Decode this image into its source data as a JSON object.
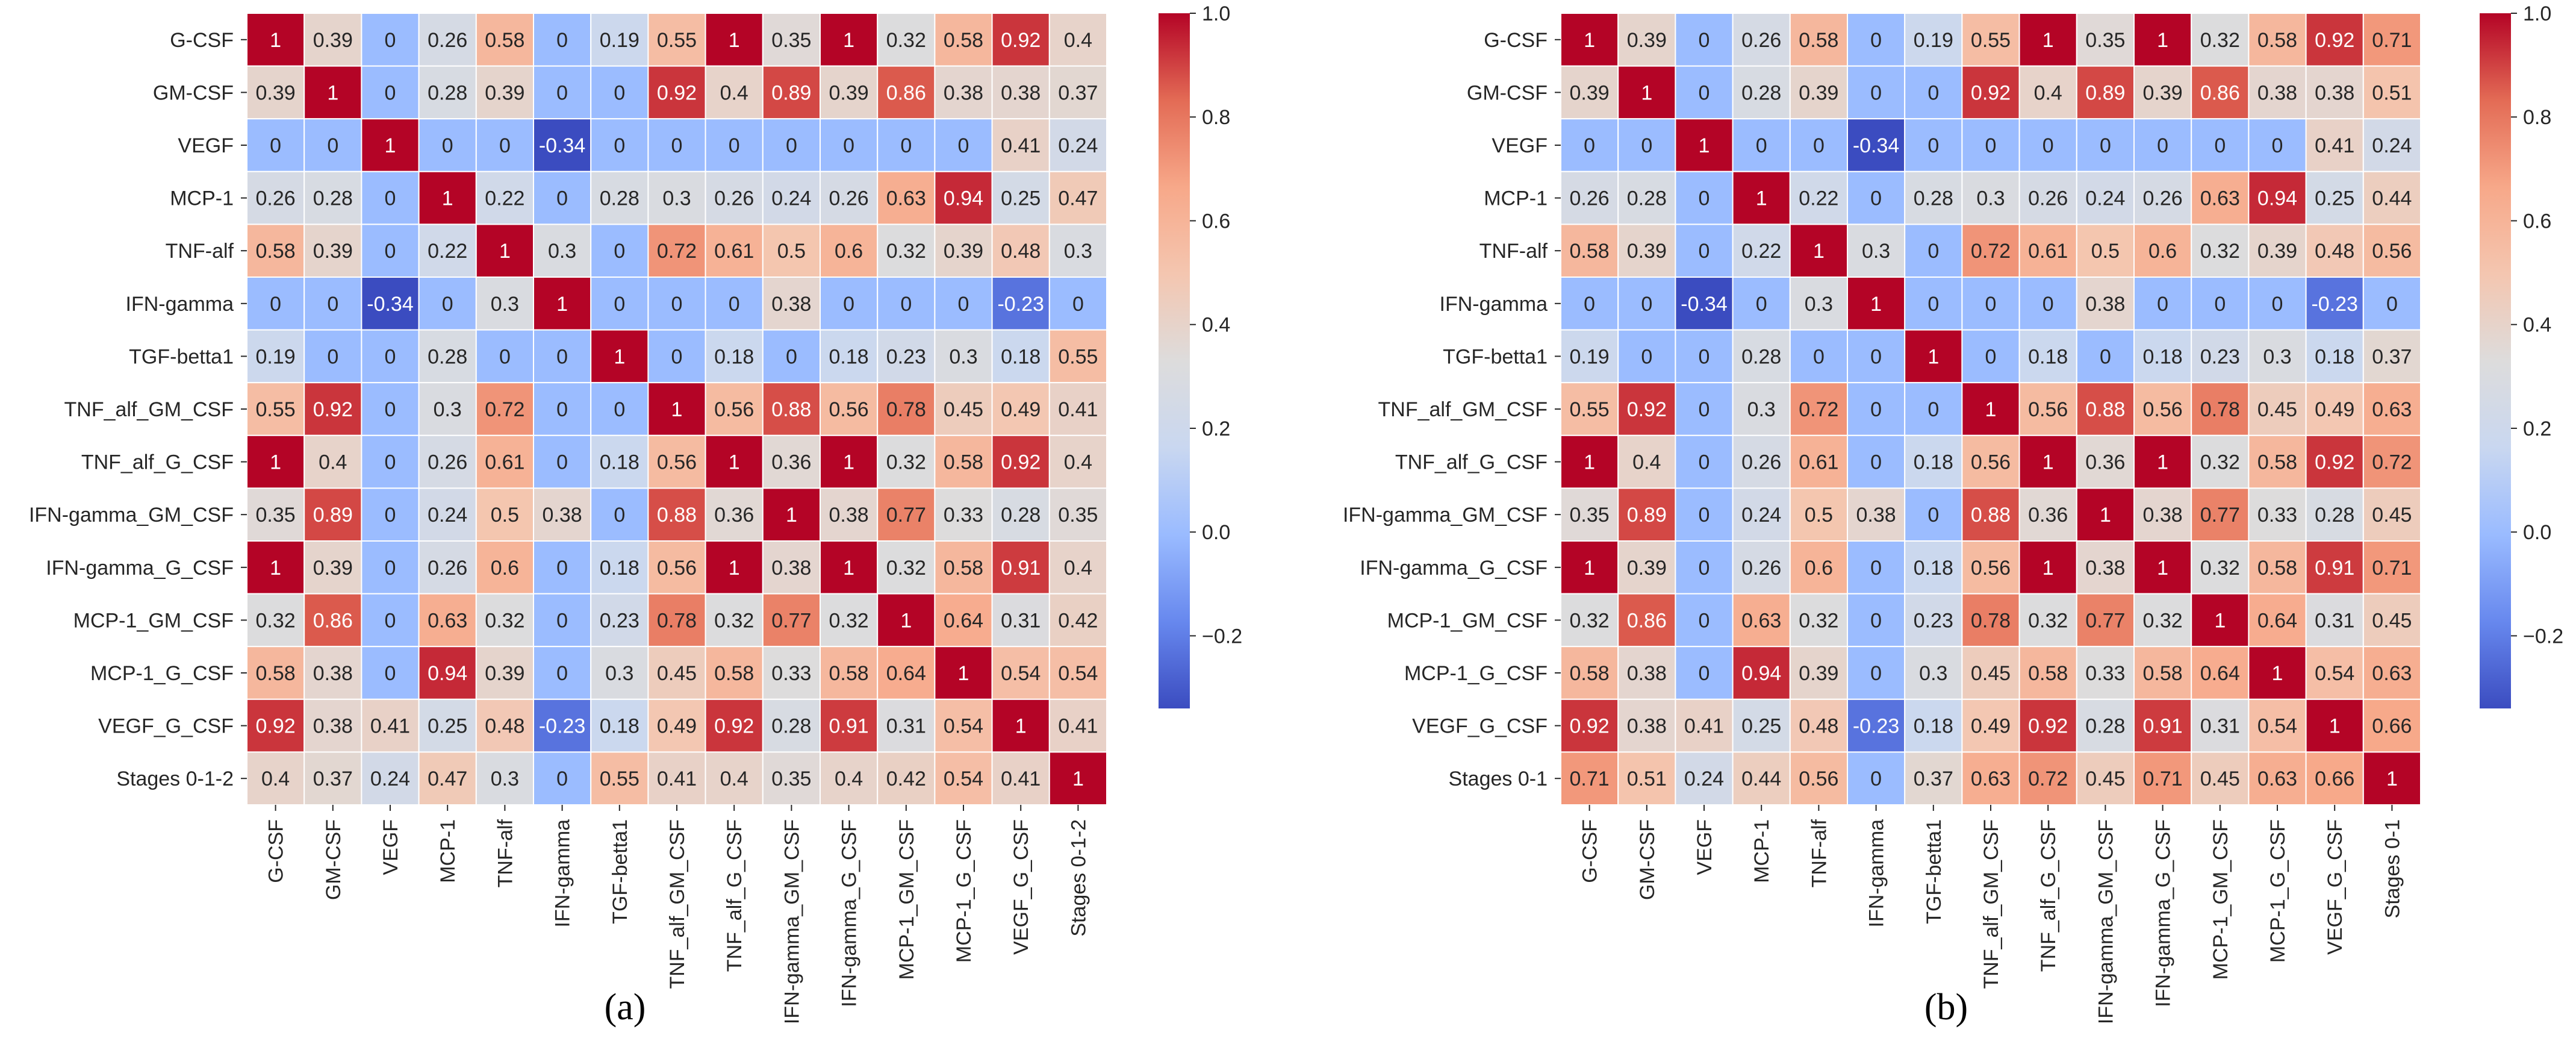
{
  "colorscale": {
    "name": "coolwarm",
    "stops": [
      "#3b4cc0",
      "#6788ee",
      "#9abbff",
      "#c9d7f0",
      "#dddcdc",
      "#f4c6b0",
      "#f7a889",
      "#e36b55",
      "#b40426"
    ],
    "min": -0.34,
    "max": 1.0,
    "ticks": [
      -0.2,
      0.0,
      0.2,
      0.4,
      0.6,
      0.8,
      1.0
    ],
    "tick_labels": [
      "−0.2",
      "0.0",
      "0.2",
      "0.4",
      "0.6",
      "0.8",
      "1.0"
    ]
  },
  "chart_data": [
    {
      "type": "heatmap",
      "panel_label": "(a)",
      "labels": [
        "G-CSF",
        "GM-CSF",
        "VEGF",
        "MCP-1",
        "TNF-alf",
        "IFN-gamma",
        "TGF-betta1",
        "TNF_alf_GM_CSF",
        "TNF_alf_G_CSF",
        "IFN-gamma_GM_CSF",
        "IFN-gamma_G_CSF",
        "MCP-1_GM_CSF",
        "MCP-1_G_CSF",
        "VEGF_G_CSF",
        "Stages 0-1-2"
      ],
      "matrix": [
        [
          1,
          0.39,
          0,
          0.26,
          0.58,
          0,
          0.19,
          0.55,
          1,
          0.35,
          1,
          0.32,
          0.58,
          0.92,
          0.4
        ],
        [
          0.39,
          1,
          0,
          0.28,
          0.39,
          0,
          0,
          0.92,
          0.4,
          0.89,
          0.39,
          0.86,
          0.38,
          0.38,
          0.37
        ],
        [
          0,
          0,
          1,
          0,
          0,
          -0.34,
          0,
          0,
          0,
          0,
          0,
          0,
          0,
          0.41,
          0.24
        ],
        [
          0.26,
          0.28,
          0,
          1,
          0.22,
          0,
          0.28,
          0.3,
          0.26,
          0.24,
          0.26,
          0.63,
          0.94,
          0.25,
          0.47
        ],
        [
          0.58,
          0.39,
          0,
          0.22,
          1,
          0.3,
          0,
          0.72,
          0.61,
          0.5,
          0.6,
          0.32,
          0.39,
          0.48,
          0.3
        ],
        [
          0,
          0,
          -0.34,
          0,
          0.3,
          1,
          0,
          0,
          0,
          0.38,
          0,
          0,
          0,
          -0.23,
          0
        ],
        [
          0.19,
          0,
          0,
          0.28,
          0,
          0,
          1,
          0,
          0.18,
          0,
          0.18,
          0.23,
          0.3,
          0.18,
          0.55
        ],
        [
          0.55,
          0.92,
          0,
          0.3,
          0.72,
          0,
          0,
          1,
          0.56,
          0.88,
          0.56,
          0.78,
          0.45,
          0.49,
          0.41
        ],
        [
          1,
          0.4,
          0,
          0.26,
          0.61,
          0,
          0.18,
          0.56,
          1,
          0.36,
          1,
          0.32,
          0.58,
          0.92,
          0.4
        ],
        [
          0.35,
          0.89,
          0,
          0.24,
          0.5,
          0.38,
          0,
          0.88,
          0.36,
          1,
          0.38,
          0.77,
          0.33,
          0.28,
          0.35
        ],
        [
          1,
          0.39,
          0,
          0.26,
          0.6,
          0,
          0.18,
          0.56,
          1,
          0.38,
          1,
          0.32,
          0.58,
          0.91,
          0.4
        ],
        [
          0.32,
          0.86,
          0,
          0.63,
          0.32,
          0,
          0.23,
          0.78,
          0.32,
          0.77,
          0.32,
          1,
          0.64,
          0.31,
          0.42
        ],
        [
          0.58,
          0.38,
          0,
          0.94,
          0.39,
          0,
          0.3,
          0.45,
          0.58,
          0.33,
          0.58,
          0.64,
          1,
          0.54,
          0.54
        ],
        [
          0.92,
          0.38,
          0.41,
          0.25,
          0.48,
          -0.23,
          0.18,
          0.49,
          0.92,
          0.28,
          0.91,
          0.31,
          0.54,
          1,
          0.41
        ],
        [
          0.4,
          0.37,
          0.24,
          0.47,
          0.3,
          0,
          0.55,
          0.41,
          0.4,
          0.35,
          0.4,
          0.42,
          0.54,
          0.41,
          1
        ]
      ]
    },
    {
      "type": "heatmap",
      "panel_label": "(b)",
      "labels": [
        "G-CSF",
        "GM-CSF",
        "VEGF",
        "MCP-1",
        "TNF-alf",
        "IFN-gamma",
        "TGF-betta1",
        "TNF_alf_GM_CSF",
        "TNF_alf_G_CSF",
        "IFN-gamma_GM_CSF",
        "IFN-gamma_G_CSF",
        "MCP-1_GM_CSF",
        "MCP-1_G_CSF",
        "VEGF_G_CSF",
        "Stages 0-1"
      ],
      "matrix": [
        [
          1,
          0.39,
          0,
          0.26,
          0.58,
          0,
          0.19,
          0.55,
          1,
          0.35,
          1,
          0.32,
          0.58,
          0.92,
          0.71
        ],
        [
          0.39,
          1,
          0,
          0.28,
          0.39,
          0,
          0,
          0.92,
          0.4,
          0.89,
          0.39,
          0.86,
          0.38,
          0.38,
          0.51
        ],
        [
          0,
          0,
          1,
          0,
          0,
          -0.34,
          0,
          0,
          0,
          0,
          0,
          0,
          0,
          0.41,
          0.24
        ],
        [
          0.26,
          0.28,
          0,
          1,
          0.22,
          0,
          0.28,
          0.3,
          0.26,
          0.24,
          0.26,
          0.63,
          0.94,
          0.25,
          0.44
        ],
        [
          0.58,
          0.39,
          0,
          0.22,
          1,
          0.3,
          0,
          0.72,
          0.61,
          0.5,
          0.6,
          0.32,
          0.39,
          0.48,
          0.56
        ],
        [
          0,
          0,
          -0.34,
          0,
          0.3,
          1,
          0,
          0,
          0,
          0.38,
          0,
          0,
          0,
          -0.23,
          0
        ],
        [
          0.19,
          0,
          0,
          0.28,
          0,
          0,
          1,
          0,
          0.18,
          0,
          0.18,
          0.23,
          0.3,
          0.18,
          0.37
        ],
        [
          0.55,
          0.92,
          0,
          0.3,
          0.72,
          0,
          0,
          1,
          0.56,
          0.88,
          0.56,
          0.78,
          0.45,
          0.49,
          0.63
        ],
        [
          1,
          0.4,
          0,
          0.26,
          0.61,
          0,
          0.18,
          0.56,
          1,
          0.36,
          1,
          0.32,
          0.58,
          0.92,
          0.72
        ],
        [
          0.35,
          0.89,
          0,
          0.24,
          0.5,
          0.38,
          0,
          0.88,
          0.36,
          1,
          0.38,
          0.77,
          0.33,
          0.28,
          0.45
        ],
        [
          1,
          0.39,
          0,
          0.26,
          0.6,
          0,
          0.18,
          0.56,
          1,
          0.38,
          1,
          0.32,
          0.58,
          0.91,
          0.71
        ],
        [
          0.32,
          0.86,
          0,
          0.63,
          0.32,
          0,
          0.23,
          0.78,
          0.32,
          0.77,
          0.32,
          1,
          0.64,
          0.31,
          0.45
        ],
        [
          0.58,
          0.38,
          0,
          0.94,
          0.39,
          0,
          0.3,
          0.45,
          0.58,
          0.33,
          0.58,
          0.64,
          1,
          0.54,
          0.63
        ],
        [
          0.92,
          0.38,
          0.41,
          0.25,
          0.48,
          -0.23,
          0.18,
          0.49,
          0.92,
          0.28,
          0.91,
          0.31,
          0.54,
          1,
          0.66
        ],
        [
          0.71,
          0.51,
          0.24,
          0.44,
          0.56,
          0,
          0.37,
          0.63,
          0.72,
          0.45,
          0.71,
          0.45,
          0.63,
          0.66,
          1
        ]
      ]
    }
  ]
}
